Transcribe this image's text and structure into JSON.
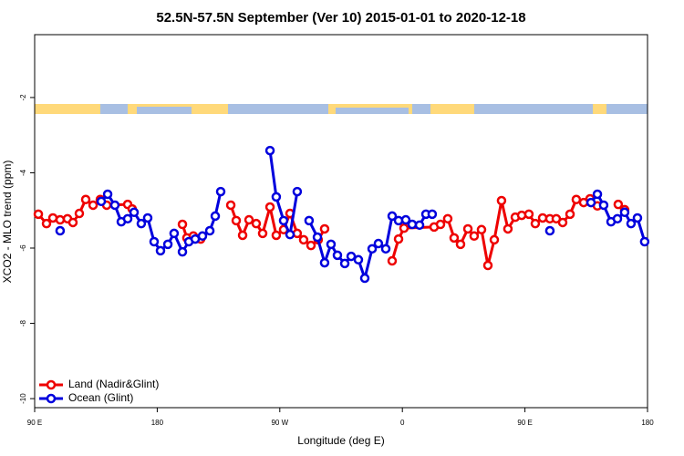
{
  "chart_data": {
    "type": "line",
    "title": "52.5N-57.5N September (Ver 10)   2015-01-01 to 2020-12-18",
    "x_label": "Longitude (deg E)",
    "y_label": "XCO2 - MLO trend (ppm)",
    "xlim": [
      90,
      540
    ],
    "ylim": [
      -10.24,
      -0.33
    ],
    "xticks": [
      {
        "value": 90,
        "label": "90 E"
      },
      {
        "value": 180,
        "label": "180"
      },
      {
        "value": 270,
        "label": "90 W"
      },
      {
        "value": 360,
        "label": "0"
      },
      {
        "value": 450,
        "label": "90 E"
      },
      {
        "value": 540,
        "label": "180"
      }
    ],
    "yticks": [
      -10,
      -8,
      -6,
      -4,
      -2
    ],
    "legend": "bottom-left",
    "series": [
      {
        "name": "Land (Nadir&Glint)",
        "color": "#ee0000",
        "x": [
          92.7,
          98.7,
          103.4,
          108.7,
          114.1,
          118.1,
          122.8,
          127.5,
          132.9,
          138.2,
          142.9,
          158.3,
          161.6,
          null,
          198.5,
          201.8,
          206.5,
          211.9,
          null,
          234.0,
          238.0,
          242.7,
          247.4,
          252.7,
          257.4,
          262.8,
          267.4,
          272.8,
          277.5,
          282.8,
          287.5,
          292.9,
          298.2,
          302.9,
          null,
          352.5,
          357.2,
          361.2,
          383.3,
          388.0,
          393.3,
          398.0,
          402.7,
          408.1,
          412.7,
          418.1,
          422.8,
          427.5,
          432.8,
          437.5,
          442.9,
          447.6,
          452.9,
          457.6,
          463.0,
          468.3,
          473.0,
          477.7,
          483.1,
          487.7,
          493.1,
          497.8,
          503.2,
          null,
          518.5,
          523.2
        ],
        "values": [
          -5.1,
          -5.35,
          -5.2,
          -5.25,
          -5.22,
          -5.32,
          -5.08,
          -4.71,
          -4.86,
          -4.71,
          -4.86,
          -4.84,
          -4.96,
          null,
          -5.37,
          -5.73,
          -5.68,
          -5.76,
          null,
          -4.86,
          -5.27,
          -5.66,
          -5.25,
          -5.35,
          -5.61,
          -4.91,
          -5.66,
          -5.51,
          -5.08,
          -5.61,
          -5.78,
          -5.93,
          -5.78,
          -5.49,
          null,
          -6.34,
          -5.76,
          -5.47,
          -5.44,
          -5.37,
          -5.22,
          -5.73,
          -5.9,
          -5.49,
          -5.68,
          -5.51,
          -6.46,
          -5.78,
          -4.74,
          -5.49,
          -5.18,
          -5.13,
          -5.1,
          -5.35,
          -5.2,
          -5.22,
          -5.22,
          -5.32,
          -5.1,
          -4.71,
          -4.79,
          -4.69,
          -4.88,
          null,
          -4.84,
          -4.98
        ]
      },
      {
        "name": "Ocean (Glint)",
        "color": "#0000dd",
        "x": [
          108.7,
          null,
          138.9,
          143.6,
          148.9,
          153.6,
          158.3,
          163.0,
          168.3,
          173.0,
          177.7,
          182.4,
          187.8,
          192.4,
          198.5,
          203.2,
          207.9,
          213.2,
          218.6,
          222.6,
          226.6,
          null,
          262.8,
          267.4,
          272.8,
          277.5,
          282.8,
          null,
          291.5,
          297.6,
          302.9,
          307.6,
          312.3,
          317.7,
          322.4,
          327.7,
          332.4,
          337.8,
          342.4,
          347.8,
          352.5,
          357.2,
          362.5,
          367.2,
          372.6,
          377.3,
          381.9,
          null,
          468.3,
          null,
          498.5,
          503.2,
          507.8,
          513.2,
          517.9,
          523.2,
          527.9,
          532.6,
          537.9
        ],
        "values": [
          -5.54,
          null,
          -4.76,
          -4.57,
          -4.86,
          -5.3,
          -5.22,
          -5.05,
          -5.35,
          -5.2,
          -5.83,
          -6.07,
          -5.9,
          -5.61,
          -6.1,
          -5.83,
          -5.76,
          -5.68,
          -5.54,
          -5.15,
          -4.5,
          null,
          -3.41,
          -4.64,
          -5.27,
          -5.64,
          -4.5,
          null,
          -5.27,
          -5.71,
          -6.39,
          -5.9,
          -6.19,
          -6.41,
          -6.22,
          -6.31,
          -6.8,
          -6.02,
          -5.88,
          -6.02,
          -5.15,
          -5.27,
          -5.25,
          -5.37,
          -5.39,
          -5.1,
          -5.1,
          null,
          -5.54,
          null,
          -4.79,
          -4.57,
          -4.86,
          -5.3,
          -5.22,
          -5.05,
          -5.35,
          -5.2,
          -5.83
        ]
      }
    ]
  }
}
